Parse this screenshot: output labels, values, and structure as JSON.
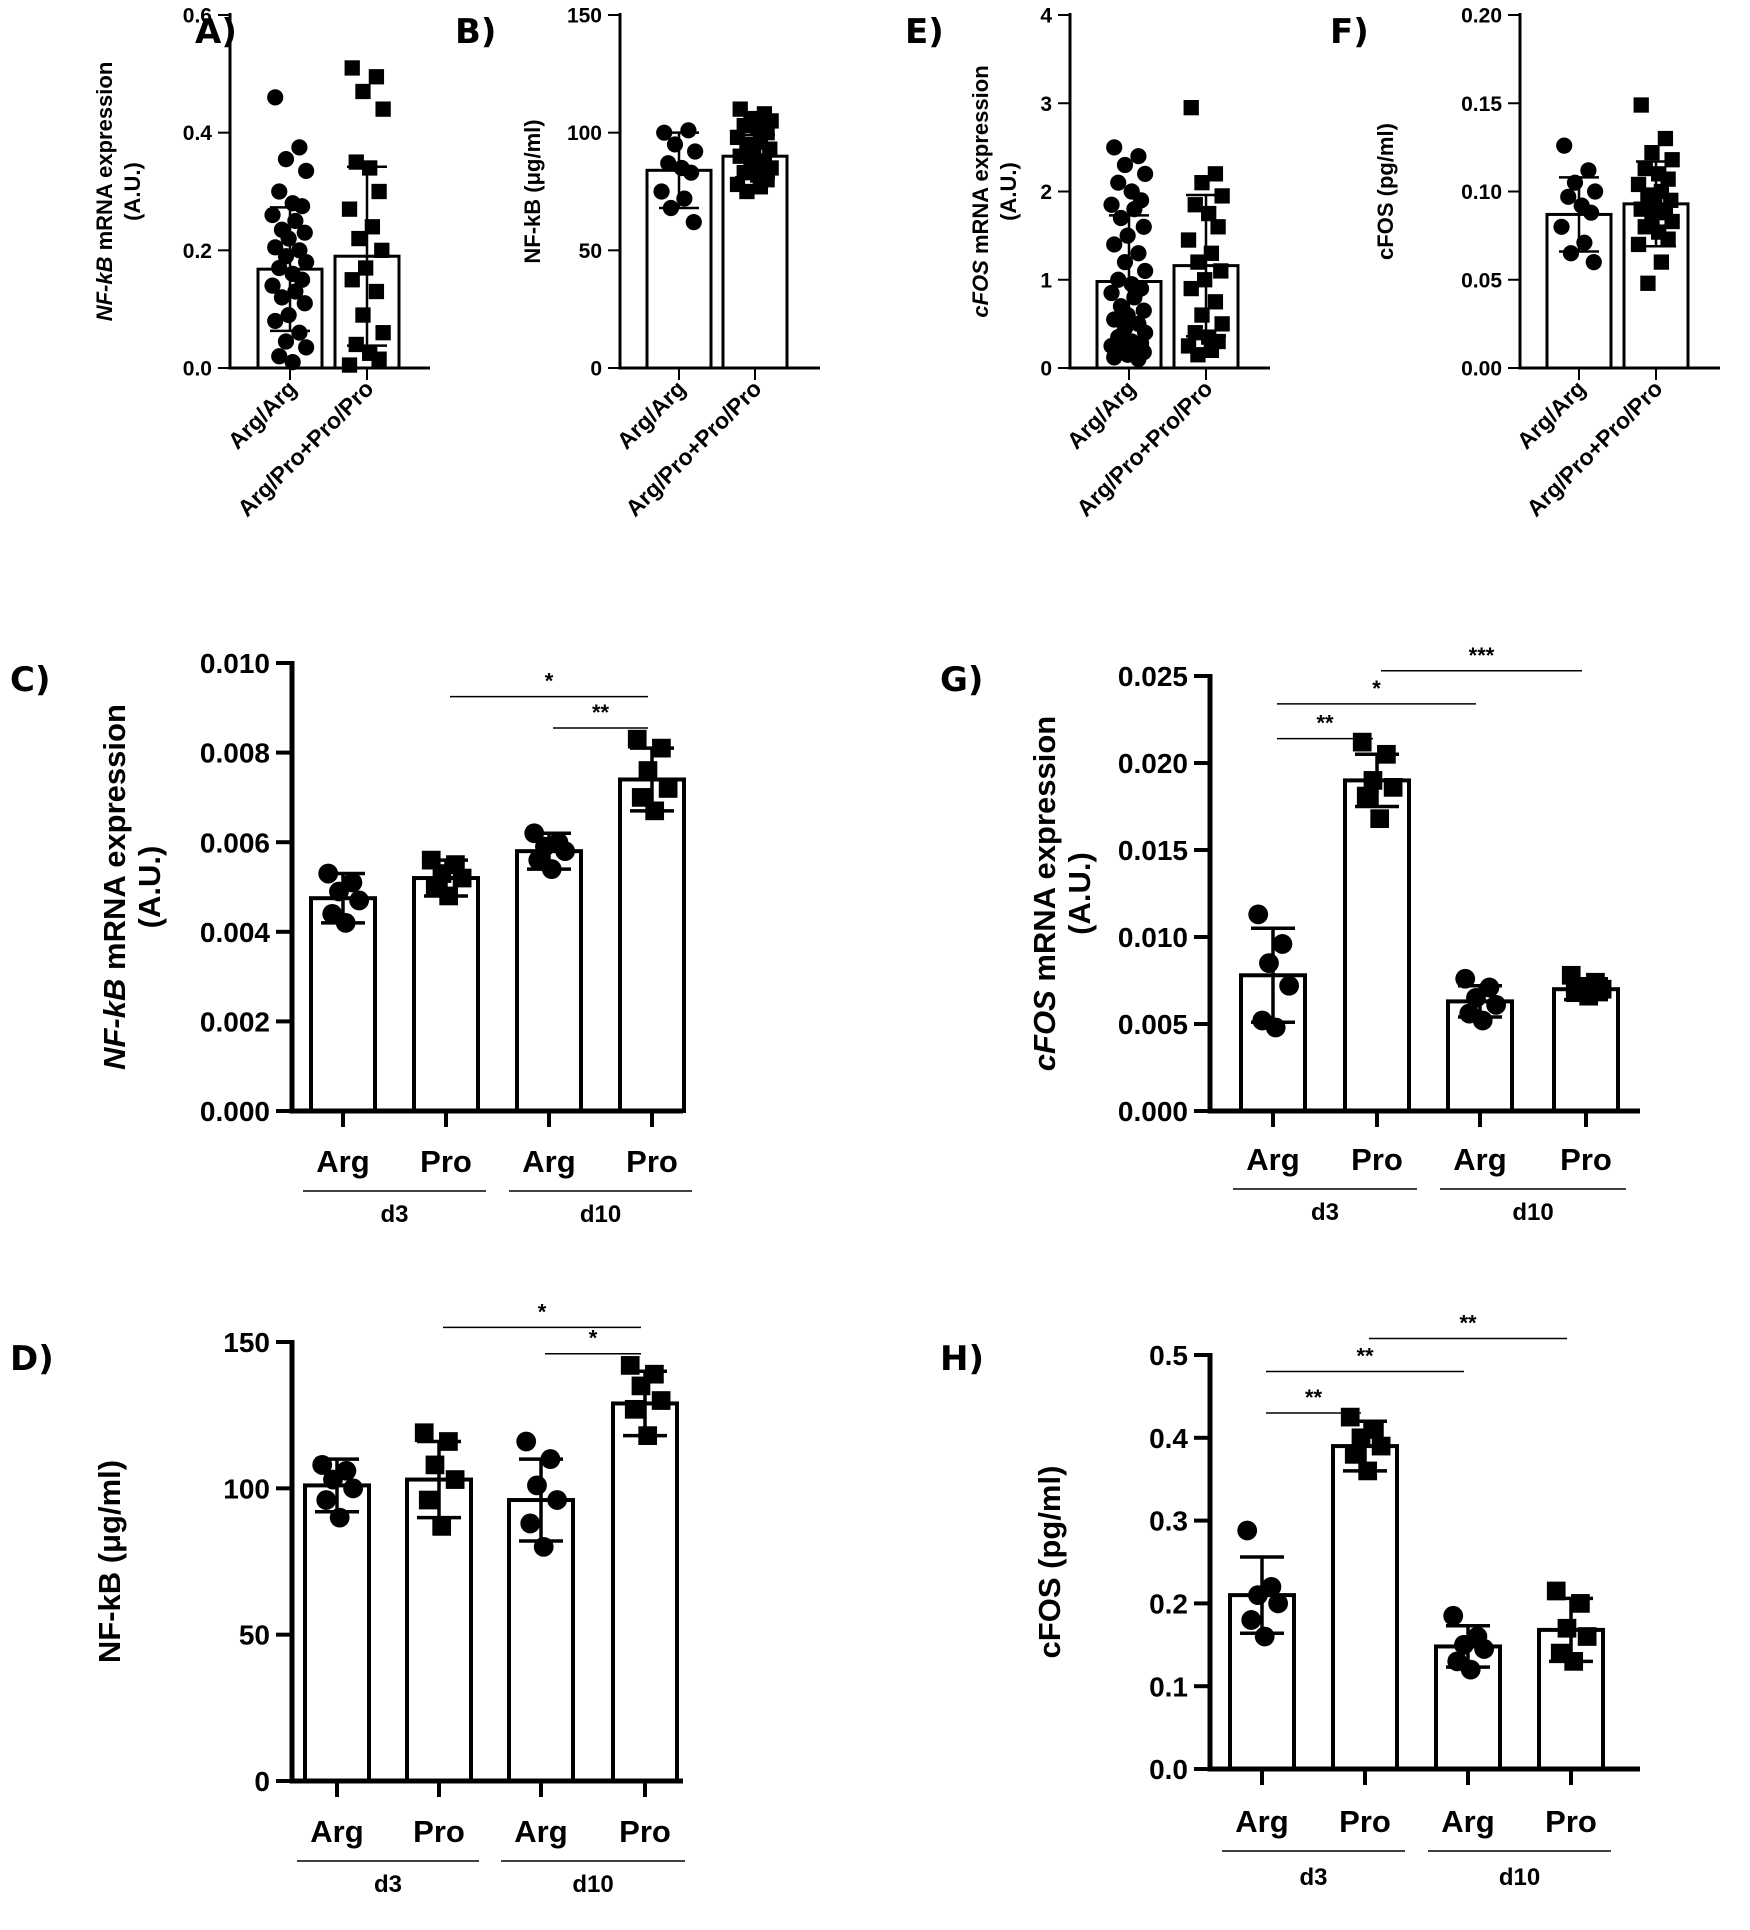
{
  "chart_data": [
    {
      "id": "A",
      "type": "bar",
      "panel_label": "A)",
      "title": "",
      "ylabel_parts": [
        {
          "t": "NF-kB",
          "i": true
        },
        {
          "t": " mRNA expression",
          "i": false
        }
      ],
      "ylabel_line2": "(A.U.)",
      "ylim": [
        0,
        0.6
      ],
      "yticks": [
        0,
        0.2,
        0.4,
        0.6
      ],
      "ytick_labels": [
        "0.0",
        "0.2",
        "0.4",
        "0.6"
      ],
      "categories": [
        "Arg/Arg",
        "Arg/Pro+Pro/Pro"
      ],
      "values": [
        0.168,
        0.19
      ],
      "sd": [
        0.105,
        0.152
      ],
      "markers": [
        "circle",
        "square"
      ],
      "points": [
        [
          0.46,
          0.375,
          0.355,
          0.335,
          0.3,
          0.28,
          0.275,
          0.26,
          0.25,
          0.235,
          0.23,
          0.22,
          0.205,
          0.2,
          0.19,
          0.18,
          0.17,
          0.16,
          0.15,
          0.14,
          0.13,
          0.12,
          0.11,
          0.09,
          0.08,
          0.06,
          0.045,
          0.035,
          0.02,
          0.01
        ],
        [
          0.51,
          0.495,
          0.47,
          0.44,
          0.35,
          0.34,
          0.3,
          0.27,
          0.24,
          0.22,
          0.2,
          0.17,
          0.15,
          0.13,
          0.09,
          0.06,
          0.04,
          0.025,
          0.015,
          0.005
        ]
      ],
      "group_labels": [],
      "significance": []
    },
    {
      "id": "B",
      "type": "bar",
      "panel_label": "B)",
      "title": "",
      "ylabel_parts": [
        {
          "t": "NF-kB (",
          "i": false
        },
        {
          "t": "μ",
          "i": false
        },
        {
          "t": "g/ml)",
          "i": false
        }
      ],
      "ylabel_line2": "",
      "ylim": [
        0,
        150
      ],
      "yticks": [
        0,
        50,
        100,
        150
      ],
      "ytick_labels": [
        "0",
        "50",
        "100",
        "150"
      ],
      "categories": [
        "Arg/Arg",
        "Arg/Pro+Pro/Pro"
      ],
      "values": [
        84,
        90
      ],
      "sd": [
        16,
        9
      ],
      "markers": [
        "circle",
        "square"
      ],
      "points": [
        [
          100,
          101,
          95,
          92,
          87,
          85,
          83,
          75,
          72,
          68,
          62
        ],
        [
          110,
          108,
          106,
          105,
          103,
          102,
          100,
          98,
          96,
          95,
          93,
          92,
          90,
          88,
          87,
          85,
          83,
          82,
          80,
          78,
          77,
          75
        ]
      ],
      "group_labels": [],
      "significance": []
    },
    {
      "id": "E",
      "type": "bar",
      "panel_label": "E)",
      "title": "",
      "ylabel_parts": [
        {
          "t": "cFOS",
          "i": true
        },
        {
          "t": " mRNA expression",
          "i": false
        }
      ],
      "ylabel_line2": "(A.U.)",
      "ylim": [
        0,
        4
      ],
      "yticks": [
        0,
        1,
        2,
        3,
        4
      ],
      "ytick_labels": [
        "0",
        "1",
        "2",
        "3",
        "4"
      ],
      "categories": [
        "Arg/Arg",
        "Arg/Pro+Pro/Pro"
      ],
      "values": [
        0.98,
        1.16
      ],
      "sd": [
        0.75,
        0.8
      ],
      "markers": [
        "circle",
        "square"
      ],
      "points": [
        [
          2.5,
          2.4,
          2.3,
          2.2,
          2.1,
          2.0,
          1.9,
          1.85,
          1.8,
          1.7,
          1.6,
          1.5,
          1.4,
          1.3,
          1.2,
          1.1,
          1.0,
          0.95,
          0.9,
          0.85,
          0.8,
          0.7,
          0.65,
          0.6,
          0.55,
          0.5,
          0.45,
          0.4,
          0.35,
          0.3,
          0.28,
          0.25,
          0.22,
          0.2,
          0.18,
          0.15,
          0.12,
          0.1
        ],
        [
          2.95,
          2.2,
          2.1,
          1.95,
          1.85,
          1.75,
          1.6,
          1.45,
          1.3,
          1.2,
          1.1,
          1.0,
          0.9,
          0.75,
          0.6,
          0.5,
          0.4,
          0.35,
          0.3,
          0.25,
          0.2,
          0.15
        ]
      ],
      "group_labels": [],
      "significance": []
    },
    {
      "id": "F",
      "type": "bar",
      "panel_label": "F)",
      "title": "",
      "ylabel_parts": [
        {
          "t": "cFOS (pg/ml)",
          "i": false
        }
      ],
      "ylabel_line2": "",
      "ylim": [
        0,
        0.2
      ],
      "yticks": [
        0,
        0.05,
        0.1,
        0.15,
        0.2
      ],
      "ytick_labels": [
        "0.00",
        "0.05",
        "0.10",
        "0.15",
        "0.20"
      ],
      "categories": [
        "Arg/Arg",
        "Arg/Pro+Pro/Pro"
      ],
      "values": [
        0.087,
        0.093
      ],
      "sd": [
        0.021,
        0.024
      ],
      "markers": [
        "circle",
        "square"
      ],
      "points": [
        [
          0.126,
          0.112,
          0.105,
          0.1,
          0.097,
          0.092,
          0.088,
          0.08,
          0.071,
          0.065,
          0.06
        ],
        [
          0.149,
          0.13,
          0.122,
          0.118,
          0.113,
          0.11,
          0.107,
          0.104,
          0.1,
          0.098,
          0.095,
          0.093,
          0.09,
          0.088,
          0.085,
          0.083,
          0.08,
          0.077,
          0.073,
          0.07,
          0.06,
          0.048
        ]
      ],
      "group_labels": [],
      "significance": []
    },
    {
      "id": "C",
      "type": "bar",
      "panel_label": "C)",
      "title": "",
      "ylabel_parts": [
        {
          "t": "NF-kB",
          "i": true
        },
        {
          "t": " mRNA expression",
          "i": false
        }
      ],
      "ylabel_line2": "(A.U.)",
      "ylim": [
        0,
        0.01
      ],
      "yticks": [
        0,
        0.002,
        0.004,
        0.006,
        0.008,
        0.01
      ],
      "ytick_labels": [
        "0.000",
        "0.002",
        "0.004",
        "0.006",
        "0.008",
        "0.010"
      ],
      "categories": [
        "Arg",
        "Pro",
        "Arg",
        "Pro"
      ],
      "values": [
        0.00475,
        0.0052,
        0.0058,
        0.0074
      ],
      "sd": [
        0.00055,
        0.0004,
        0.0004,
        0.0007
      ],
      "markers": [
        "circle",
        "square",
        "circle",
        "square"
      ],
      "points": [
        [
          0.0053,
          0.0051,
          0.0049,
          0.0047,
          0.0044,
          0.0042
        ],
        [
          0.0056,
          0.0055,
          0.0053,
          0.0052,
          0.005,
          0.0048
        ],
        [
          0.0062,
          0.006,
          0.0059,
          0.0058,
          0.0056,
          0.0054
        ],
        [
          0.0083,
          0.0081,
          0.0076,
          0.0072,
          0.007,
          0.0067
        ]
      ],
      "group_labels": [
        {
          "label": "d3",
          "from": 0,
          "to": 1
        },
        {
          "label": "d10",
          "from": 2,
          "to": 3
        }
      ],
      "significance": [
        {
          "from": 1,
          "to": 3,
          "label": "*",
          "y": 0.00925
        },
        {
          "from": 2,
          "to": 3,
          "label": "**",
          "y": 0.00855
        }
      ]
    },
    {
      "id": "G",
      "type": "bar",
      "panel_label": "G)",
      "title": "",
      "ylabel_parts": [
        {
          "t": "cFOS",
          "i": true
        },
        {
          "t": " mRNA expression",
          "i": false
        }
      ],
      "ylabel_line2": "(A.U.)",
      "ylim": [
        0,
        0.025
      ],
      "yticks": [
        0,
        0.005,
        0.01,
        0.015,
        0.02,
        0.025
      ],
      "ytick_labels": [
        "0.000",
        "0.005",
        "0.010",
        "0.015",
        "0.020",
        "0.025"
      ],
      "categories": [
        "Arg",
        "Pro",
        "Arg",
        "Pro"
      ],
      "values": [
        0.0078,
        0.019,
        0.0063,
        0.007
      ],
      "sd": [
        0.0027,
        0.0015,
        0.0009,
        0.0006
      ],
      "markers": [
        "circle",
        "square",
        "circle",
        "square"
      ],
      "points": [
        [
          0.0113,
          0.0096,
          0.0085,
          0.0072,
          0.0052,
          0.0048
        ],
        [
          0.0212,
          0.0205,
          0.019,
          0.0186,
          0.0181,
          0.0168
        ],
        [
          0.0076,
          0.0071,
          0.0065,
          0.0061,
          0.0056,
          0.0052
        ],
        [
          0.0078,
          0.0074,
          0.0071,
          0.007,
          0.0068,
          0.0066
        ]
      ],
      "group_labels": [
        {
          "label": "d3",
          "from": 0,
          "to": 1
        },
        {
          "label": "d10",
          "from": 2,
          "to": 3
        }
      ],
      "significance": [
        {
          "from": 1,
          "to": 3,
          "label": "***",
          "y": 0.0253
        },
        {
          "from": 0,
          "to": 2,
          "label": "*",
          "y": 0.0234
        },
        {
          "from": 0,
          "to": 1,
          "label": "**",
          "y": 0.0214
        }
      ]
    },
    {
      "id": "D",
      "type": "bar",
      "panel_label": "D)",
      "title": "",
      "ylabel_parts": [
        {
          "t": "NF-kB (",
          "i": false
        },
        {
          "t": "μ",
          "i": false
        },
        {
          "t": "g/ml)",
          "i": false
        }
      ],
      "ylabel_line2": "",
      "ylim": [
        0,
        150
      ],
      "yticks": [
        0,
        50,
        100,
        150
      ],
      "ytick_labels": [
        "0",
        "50",
        "100",
        "150"
      ],
      "categories": [
        "Arg",
        "Pro",
        "Arg",
        "Pro"
      ],
      "values": [
        101,
        103,
        96,
        129
      ],
      "sd": [
        9,
        13,
        14,
        11
      ],
      "markers": [
        "circle",
        "square",
        "circle",
        "square"
      ],
      "points": [
        [
          108,
          106,
          103,
          100,
          96,
          90
        ],
        [
          119,
          116,
          108,
          103,
          96,
          87
        ],
        [
          116,
          110,
          101,
          96,
          88,
          80
        ],
        [
          142,
          139,
          135,
          130,
          127,
          118
        ]
      ],
      "group_labels": [
        {
          "label": "d3",
          "from": 0,
          "to": 1
        },
        {
          "label": "d10",
          "from": 2,
          "to": 3
        }
      ],
      "significance": [
        {
          "from": 1,
          "to": 3,
          "label": "*",
          "y": 155
        },
        {
          "from": 2,
          "to": 3,
          "label": "*",
          "y": 146
        }
      ]
    },
    {
      "id": "H",
      "type": "bar",
      "panel_label": "H)",
      "title": "",
      "ylabel_parts": [
        {
          "t": "cFOS (pg/ml)",
          "i": false
        }
      ],
      "ylabel_line2": "",
      "ylim": [
        0,
        0.5
      ],
      "yticks": [
        0,
        0.1,
        0.2,
        0.3,
        0.4,
        0.5
      ],
      "ytick_labels": [
        "0.0",
        "0.1",
        "0.2",
        "0.3",
        "0.4",
        "0.5"
      ],
      "categories": [
        "Arg",
        "Pro",
        "Arg",
        "Pro"
      ],
      "values": [
        0.21,
        0.39,
        0.148,
        0.168
      ],
      "sd": [
        0.046,
        0.03,
        0.025,
        0.038
      ],
      "markers": [
        "circle",
        "square",
        "circle",
        "square"
      ],
      "points": [
        [
          0.288,
          0.22,
          0.21,
          0.2,
          0.18,
          0.16
        ],
        [
          0.425,
          0.41,
          0.4,
          0.39,
          0.38,
          0.36
        ],
        [
          0.185,
          0.16,
          0.15,
          0.145,
          0.13,
          0.12
        ],
        [
          0.215,
          0.2,
          0.17,
          0.16,
          0.14,
          0.13
        ]
      ],
      "group_labels": [
        {
          "label": "d3",
          "from": 0,
          "to": 1
        },
        {
          "label": "d10",
          "from": 2,
          "to": 3
        }
      ],
      "significance": [
        {
          "from": 1,
          "to": 3,
          "label": "**",
          "y": 0.52
        },
        {
          "from": 0,
          "to": 2,
          "label": "**",
          "y": 0.48
        },
        {
          "from": 0,
          "to": 1,
          "label": "**",
          "y": 0.43
        }
      ]
    }
  ]
}
